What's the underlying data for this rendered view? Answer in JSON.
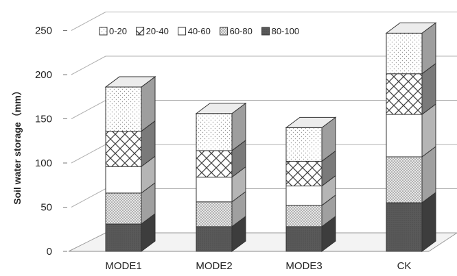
{
  "chart_data": {
    "type": "bar",
    "stacked": true,
    "three_d": true,
    "title": "",
    "xlabel": "",
    "ylabel": "Soil water storage（mm）",
    "ylim": [
      0,
      250
    ],
    "y_ticks": [
      "0",
      "50",
      "100",
      "150",
      "200",
      "250"
    ],
    "grid": true,
    "legend_position": "top",
    "categories": [
      "MODE1",
      "MODE2",
      "MODE3",
      "CK"
    ],
    "series": [
      {
        "name": "0-20",
        "values": [
          50,
          42,
          38,
          46
        ]
      },
      {
        "name": "20-40",
        "values": [
          40,
          30,
          28,
          46
        ]
      },
      {
        "name": "40-60",
        "values": [
          30,
          28,
          22,
          48
        ]
      },
      {
        "name": "60-80",
        "values": [
          35,
          28,
          24,
          52
        ]
      },
      {
        "name": "80-100",
        "values": [
          31,
          28,
          28,
          55
        ]
      }
    ]
  }
}
